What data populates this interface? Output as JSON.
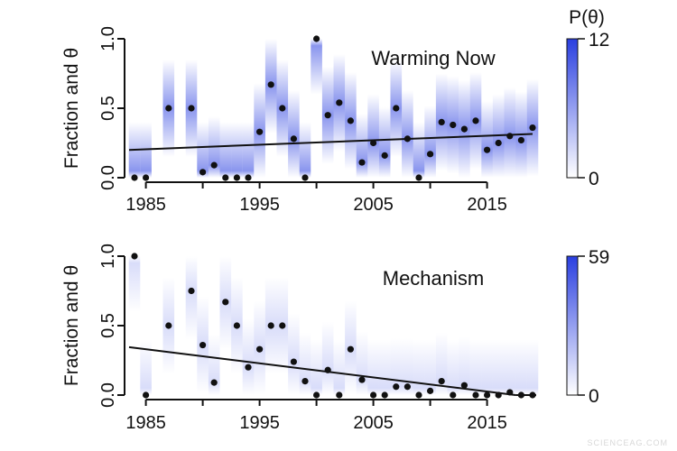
{
  "chart_data": [
    {
      "type": "scatter",
      "annotation": "Warming Now",
      "ylabel": "Fraction and θ",
      "xlabel": "",
      "xticks": [
        1985,
        1995,
        2005,
        2015
      ],
      "xminor_ticks": [
        1985,
        1990,
        1995,
        2000,
        2005,
        2010,
        2015
      ],
      "yticks": [
        "0.0",
        "0.5",
        "1.0"
      ],
      "ylim": [
        0,
        1
      ],
      "x": [
        1984,
        1985,
        1987,
        1989,
        1990,
        1991,
        1992,
        1993,
        1994,
        1995,
        1996,
        1997,
        1998,
        1999,
        2000,
        2001,
        2002,
        2003,
        2004,
        2005,
        2006,
        2007,
        2008,
        2009,
        2010,
        2011,
        2012,
        2013,
        2014,
        2015,
        2016,
        2017,
        2018,
        2019
      ],
      "y": [
        0,
        0,
        0.5,
        0.5,
        0.04,
        0.09,
        0,
        0,
        0,
        0.33,
        0.67,
        0.5,
        0.28,
        0,
        1.0,
        0.45,
        0.54,
        0.41,
        0.11,
        0.25,
        0.16,
        0.5,
        0.28,
        0,
        0.17,
        0.4,
        0.38,
        0.35,
        0.41,
        0.2,
        0.25,
        0.3,
        0.27,
        0.36
      ],
      "trend_line": {
        "x": [
          1984,
          2019
        ],
        "y": [
          0.2,
          0.315
        ]
      },
      "colorbar": {
        "title": "P(θ)",
        "min": "0",
        "max": "12",
        "color_low": "#ffffff",
        "color_high": "#2a3fe0"
      }
    },
    {
      "type": "scatter",
      "annotation": "Mechanism",
      "ylabel": "Fraction and θ",
      "xlabel": "",
      "xticks": [
        1985,
        1995,
        2005,
        2015
      ],
      "xminor_ticks": [
        1985,
        1990,
        1995,
        2000,
        2005,
        2010,
        2015
      ],
      "yticks": [
        "0.0",
        "0.5",
        "1.0"
      ],
      "ylim": [
        0,
        1
      ],
      "x": [
        1984,
        1985,
        1987,
        1989,
        1990,
        1991,
        1992,
        1993,
        1994,
        1995,
        1996,
        1997,
        1998,
        1999,
        2000,
        2001,
        2002,
        2003,
        2004,
        2005,
        2006,
        2007,
        2008,
        2009,
        2010,
        2011,
        2012,
        2013,
        2014,
        2015,
        2016,
        2017,
        2018,
        2019
      ],
      "y": [
        1.0,
        0,
        0.5,
        0.75,
        0.36,
        0.09,
        0.67,
        0.5,
        0.2,
        0.33,
        0.5,
        0.5,
        0.24,
        0.1,
        0,
        0.18,
        0,
        0.33,
        0.11,
        0,
        0,
        0.06,
        0.06,
        0,
        0.03,
        0.1,
        0,
        0.07,
        0,
        0,
        0,
        0.02,
        0,
        0
      ],
      "trend_line": {
        "x": [
          1984,
          2017.5
        ],
        "y": [
          0.345,
          0
        ]
      },
      "colorbar": {
        "min": "0",
        "max": "59",
        "color_low": "#ffffff",
        "color_high": "#2a3fe0"
      }
    }
  ],
  "watermark": "SCIENCEAG.COM"
}
